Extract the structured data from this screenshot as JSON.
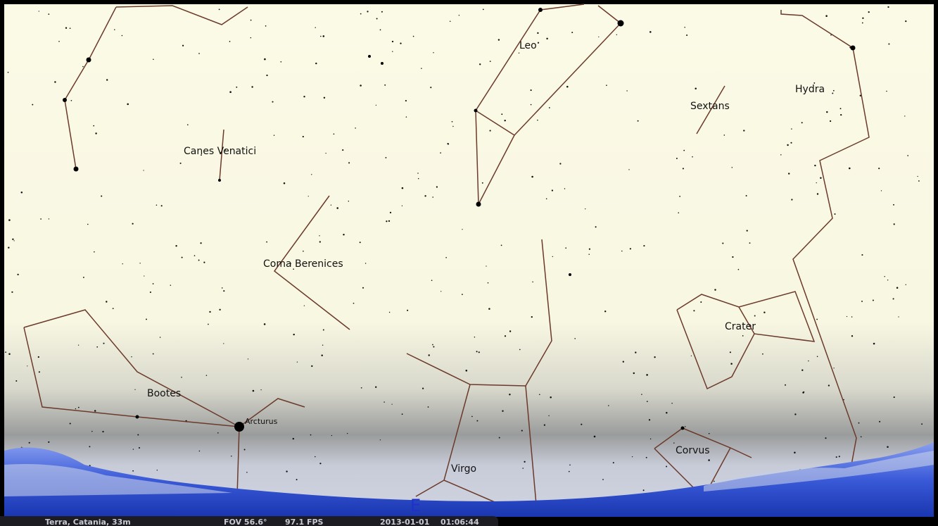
{
  "constellations": [
    {
      "label": "Leo"
    },
    {
      "label": "Sextans"
    },
    {
      "label": "Hydra"
    },
    {
      "label": "Canes Venatici"
    },
    {
      "label": "Coma Berenices"
    },
    {
      "label": "Crater"
    },
    {
      "label": "Bootes"
    },
    {
      "label": "Virgo"
    },
    {
      "label": "Corvus"
    }
  ],
  "stars": [
    {
      "label": "Arcturus"
    }
  ],
  "cardinal": "E",
  "status_bar": {
    "location": "Terra, Catania, 33m",
    "fov": "FOV 56.6°",
    "fps": "97.1 FPS",
    "date": "2013-01-01",
    "time": "01:06:44"
  }
}
